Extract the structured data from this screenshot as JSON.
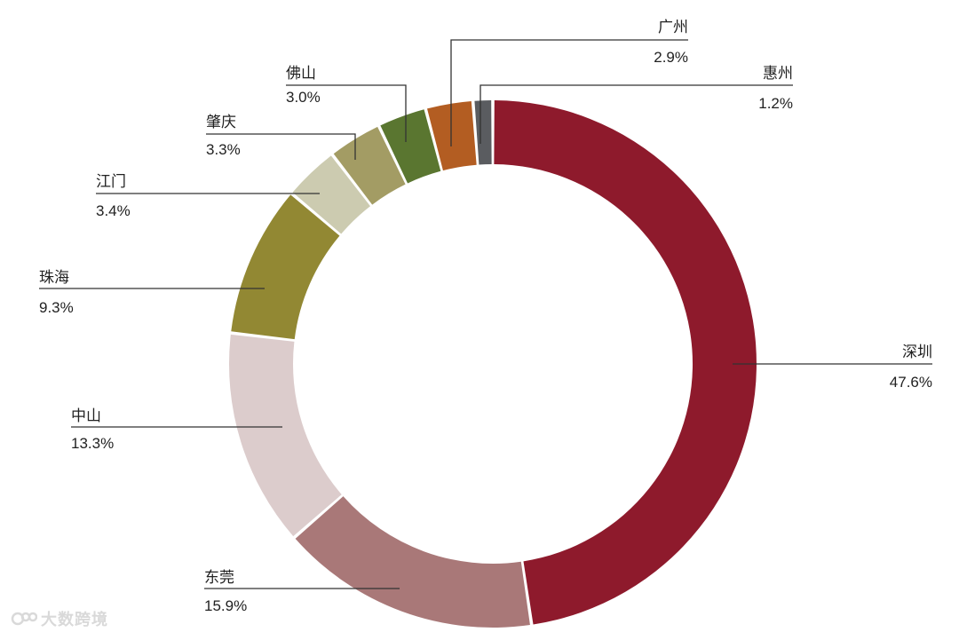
{
  "chart_data": {
    "type": "pie",
    "title": "",
    "categories": [
      "深圳",
      "东莞",
      "中山",
      "珠海",
      "江门",
      "肇庆",
      "佛山",
      "广州",
      "惠州"
    ],
    "values": [
      47.6,
      15.9,
      13.3,
      9.3,
      3.4,
      3.3,
      3.0,
      2.9,
      1.2
    ],
    "value_labels": [
      "47.6%",
      "15.9%",
      "13.3%",
      "9.3%",
      "3.4%",
      "3.3%",
      "3.0%",
      "2.9%",
      "1.2%"
    ],
    "colors": [
      "#8e1a2c",
      "#a97878",
      "#dccccc",
      "#928833",
      "#cccbb0",
      "#a39c64",
      "#5a7630",
      "#b35d22",
      "#5a5c60"
    ],
    "donut": true,
    "direction": "clockwise",
    "start": "top"
  },
  "watermark": {
    "text": "大数跨境"
  }
}
